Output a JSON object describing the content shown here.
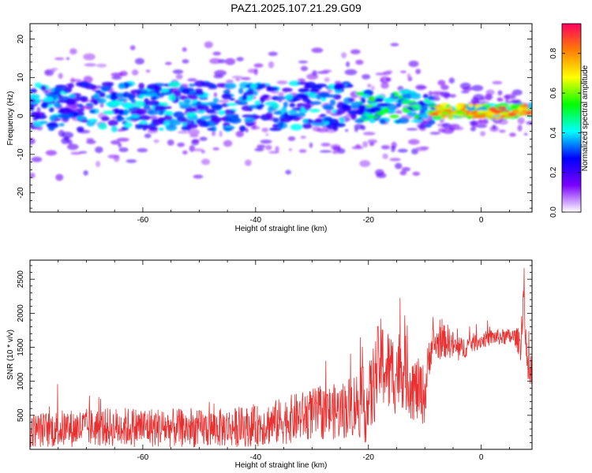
{
  "title": "PAZ1.2025.107.21.29.G09",
  "chart_data": [
    {
      "type": "heatmap",
      "xlabel": "Height of straight line (km)",
      "ylabel": "Frequency (Hz)",
      "xlim": [
        -80,
        9
      ],
      "ylim": [
        -25,
        24
      ],
      "xticks": [
        -60,
        -40,
        -20,
        0
      ],
      "yticks": [
        -20,
        -10,
        0,
        10,
        20
      ],
      "colorbar": {
        "label": "Normalized spectral amplitude",
        "range": [
          0.0,
          0.95
        ],
        "ticks": [
          "0.0",
          "0.2",
          "0.4",
          "0.6",
          "0.8"
        ],
        "colors": [
          "#ffffff",
          "#7a00ff",
          "#0000ff",
          "#00ffff",
          "#00ff00",
          "#ffff00",
          "#ff8000",
          "#ff0060"
        ]
      }
    },
    {
      "type": "line",
      "xlabel": "Height of straight line (km)",
      "ylabel": "SNR (10 * v/v)",
      "xlim": [
        -80,
        9
      ],
      "ylim": [
        0,
        2780
      ],
      "xticks": [
        -60,
        -40,
        -20,
        0
      ],
      "yticks": [
        500,
        1000,
        1500,
        2000,
        2500
      ],
      "color": "#e83030",
      "envelope": {
        "x": [
          -80,
          -75,
          -70,
          -60,
          -50,
          -40,
          -35,
          -30,
          -25,
          -22,
          -20,
          -18,
          -16,
          -14,
          -12,
          -10,
          -9,
          -8,
          -6,
          -4,
          -2,
          0,
          2,
          4,
          6,
          7,
          7.5,
          8,
          8.5,
          9
        ],
        "mean": [
          280,
          300,
          320,
          330,
          300,
          340,
          420,
          520,
          560,
          680,
          650,
          1300,
          1100,
          1200,
          900,
          800,
          1500,
          1550,
          1600,
          1450,
          1550,
          1600,
          1650,
          1650,
          1650,
          1550,
          2300,
          1300,
          1100,
          1000
        ],
        "amp": [
          250,
          280,
          280,
          300,
          280,
          300,
          350,
          380,
          420,
          500,
          600,
          650,
          650,
          600,
          500,
          450,
          300,
          250,
          250,
          180,
          150,
          120,
          120,
          120,
          130,
          250,
          350,
          300,
          250,
          200
        ]
      }
    }
  ]
}
